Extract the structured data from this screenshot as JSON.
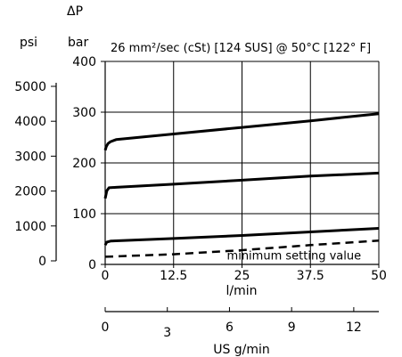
{
  "chart_data": {
    "type": "line",
    "title": "26 mm²/sec (cSt) [124 SUS] @ 50°C [122° F]",
    "delta_p_label": "ΔP",
    "left_unit_label": "psi",
    "right_unit_label": "bar",
    "x_label": "l/min",
    "x2_label": "US g/min",
    "x_range": [
      0,
      50
    ],
    "y_range": [
      0,
      400
    ],
    "x_ticks": [
      0,
      12.5,
      25,
      37.5,
      50
    ],
    "x_tick_labels": [
      "0",
      "12.5",
      "25",
      "37.5",
      "50"
    ],
    "y_ticks": [
      0,
      100,
      200,
      300,
      400
    ],
    "y_tick_labels": [
      "0",
      "100",
      "200",
      "300",
      "400"
    ],
    "psi_ticks": [
      0,
      1000,
      2000,
      3000,
      4000,
      5000
    ],
    "psi_tick_labels": [
      "0",
      "1000",
      "2000",
      "3000",
      "4000",
      "5000"
    ],
    "usgpm_ticks": [
      0,
      3,
      6,
      9,
      12
    ],
    "usgpm_tick_labels": [
      "0",
      "3",
      "6",
      "9",
      "12"
    ],
    "grid": true,
    "series": [
      {
        "style": "solid",
        "points": [
          [
            0,
            225
          ],
          [
            0.2,
            232
          ],
          [
            0.5,
            238
          ],
          [
            1,
            242
          ],
          [
            2,
            246
          ],
          [
            12.5,
            257
          ],
          [
            25,
            270
          ],
          [
            37.5,
            283
          ],
          [
            50,
            297
          ]
        ]
      },
      {
        "style": "solid",
        "points": [
          [
            0,
            130
          ],
          [
            0.3,
            145
          ],
          [
            0.7,
            151
          ],
          [
            2,
            152
          ],
          [
            12.5,
            158
          ],
          [
            25,
            166
          ],
          [
            37.5,
            174
          ],
          [
            50,
            180
          ]
        ]
      },
      {
        "style": "solid",
        "points": [
          [
            0,
            38
          ],
          [
            0.3,
            44
          ],
          [
            1,
            46
          ],
          [
            3,
            47
          ],
          [
            12.5,
            51
          ],
          [
            25,
            57
          ],
          [
            37.5,
            64
          ],
          [
            50,
            71
          ]
        ]
      },
      {
        "style": "dashed",
        "points": [
          [
            0,
            15
          ],
          [
            12.5,
            20
          ],
          [
            25,
            28
          ],
          [
            37.5,
            38
          ],
          [
            50,
            47
          ]
        ]
      }
    ],
    "annotations": [
      {
        "text": "minimum setting value",
        "x": 34.5,
        "y": 17
      }
    ]
  }
}
